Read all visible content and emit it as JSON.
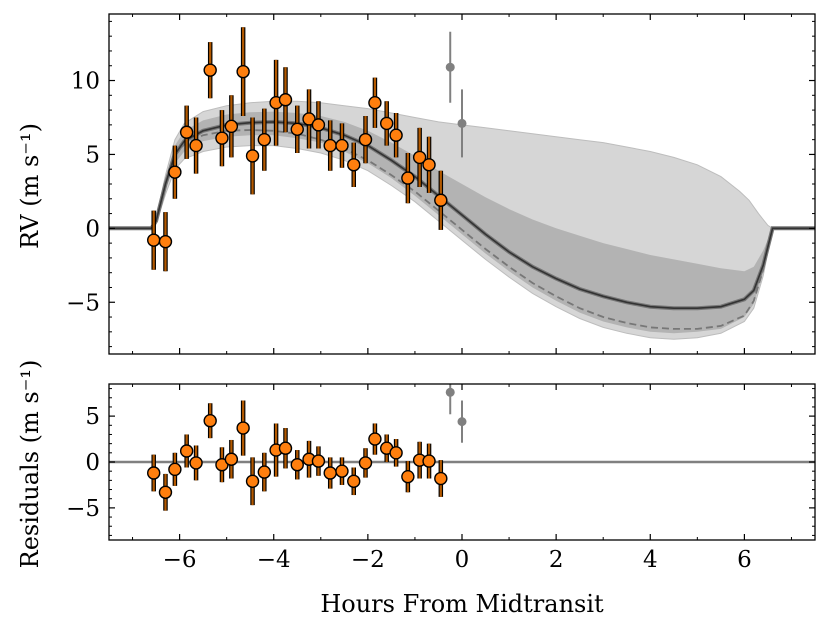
{
  "chart_data": {
    "type": "scatter",
    "xlabel": "Hours From Midtransit",
    "xlim": [
      -7.5,
      7.5
    ],
    "xticks": [
      -6,
      -4,
      -2,
      0,
      2,
      4,
      6
    ],
    "xtick_labels": [
      "−6",
      "−4",
      "−2",
      "0",
      "2",
      "4",
      "6"
    ],
    "colors": {
      "point_fill": "#ff7f0e",
      "point_edge": "#000000",
      "errorbar": "#b35900",
      "excluded": "#808080",
      "model_line": "#333333",
      "band_outer": "#d6d6d6",
      "band_inner": "#b3b3b3",
      "dashed": "#777777"
    },
    "top": {
      "ylabel": "RV (m s⁻¹)",
      "ylim": [
        -8.5,
        14.5
      ],
      "yticks": [
        -5,
        0,
        5,
        10
      ],
      "ytick_labels": [
        "−5",
        "0",
        "5",
        "10"
      ],
      "points": [
        {
          "x": -6.55,
          "y": -0.8,
          "err": 2.0
        },
        {
          "x": -6.3,
          "y": -0.9,
          "err": 2.0
        },
        {
          "x": -6.1,
          "y": 3.8,
          "err": 1.8
        },
        {
          "x": -5.85,
          "y": 6.5,
          "err": 1.8
        },
        {
          "x": -5.65,
          "y": 5.6,
          "err": 1.9
        },
        {
          "x": -5.35,
          "y": 10.7,
          "err": 1.9
        },
        {
          "x": -5.1,
          "y": 6.1,
          "err": 1.9
        },
        {
          "x": -4.9,
          "y": 6.9,
          "err": 2.1
        },
        {
          "x": -4.65,
          "y": 10.6,
          "err": 3.0
        },
        {
          "x": -4.45,
          "y": 4.9,
          "err": 2.6
        },
        {
          "x": -4.2,
          "y": 6.0,
          "err": 2.1
        },
        {
          "x": -3.95,
          "y": 8.5,
          "err": 2.9
        },
        {
          "x": -3.75,
          "y": 8.7,
          "err": 2.2
        },
        {
          "x": -3.5,
          "y": 6.7,
          "err": 1.6
        },
        {
          "x": -3.25,
          "y": 7.4,
          "err": 2.0
        },
        {
          "x": -3.05,
          "y": 7.0,
          "err": 1.6
        },
        {
          "x": -2.8,
          "y": 5.6,
          "err": 1.7
        },
        {
          "x": -2.55,
          "y": 5.6,
          "err": 1.5
        },
        {
          "x": -2.3,
          "y": 4.3,
          "err": 1.5
        },
        {
          "x": -2.05,
          "y": 6.0,
          "err": 1.6
        },
        {
          "x": -1.85,
          "y": 8.5,
          "err": 1.7
        },
        {
          "x": -1.6,
          "y": 7.1,
          "err": 1.5
        },
        {
          "x": -1.4,
          "y": 6.3,
          "err": 1.5
        },
        {
          "x": -1.15,
          "y": 3.4,
          "err": 1.7
        },
        {
          "x": -0.9,
          "y": 4.8,
          "err": 2.0
        },
        {
          "x": -0.7,
          "y": 4.3,
          "err": 1.9
        },
        {
          "x": -0.45,
          "y": 1.9,
          "err": 2.0
        }
      ],
      "excluded_points": [
        {
          "x": -0.25,
          "y": 10.9,
          "err": 2.4
        },
        {
          "x": 0.0,
          "y": 7.1,
          "err": 2.3
        }
      ],
      "model_curve": [
        [
          -7.5,
          0.0
        ],
        [
          -6.6,
          0.0
        ],
        [
          -6.5,
          0.5
        ],
        [
          -6.3,
          3.0
        ],
        [
          -6.1,
          5.0
        ],
        [
          -5.9,
          5.9
        ],
        [
          -5.5,
          6.6
        ],
        [
          -5.0,
          7.0
        ],
        [
          -4.5,
          7.15
        ],
        [
          -4.0,
          7.2
        ],
        [
          -3.5,
          7.1
        ],
        [
          -3.0,
          6.8
        ],
        [
          -2.5,
          6.3
        ],
        [
          -2.0,
          5.6
        ],
        [
          -1.5,
          4.6
        ],
        [
          -1.0,
          3.5
        ],
        [
          -0.5,
          2.2
        ],
        [
          0.0,
          0.9
        ],
        [
          0.5,
          -0.4
        ],
        [
          1.0,
          -1.6
        ],
        [
          1.5,
          -2.6
        ],
        [
          2.0,
          -3.4
        ],
        [
          2.5,
          -4.1
        ],
        [
          3.0,
          -4.6
        ],
        [
          3.5,
          -5.0
        ],
        [
          4.0,
          -5.3
        ],
        [
          4.5,
          -5.4
        ],
        [
          5.0,
          -5.4
        ],
        [
          5.5,
          -5.3
        ],
        [
          6.0,
          -4.8
        ],
        [
          6.2,
          -4.2
        ],
        [
          6.4,
          -2.5
        ],
        [
          6.6,
          0.0
        ],
        [
          7.5,
          0.0
        ]
      ],
      "dashed_curve": [
        [
          -6.6,
          0.0
        ],
        [
          -6.5,
          0.5
        ],
        [
          -6.3,
          3.0
        ],
        [
          -6.1,
          4.9
        ],
        [
          -5.9,
          5.7
        ],
        [
          -5.5,
          6.3
        ],
        [
          -5.0,
          6.6
        ],
        [
          -4.5,
          6.65
        ],
        [
          -4.0,
          6.6
        ],
        [
          -3.5,
          6.4
        ],
        [
          -3.0,
          6.0
        ],
        [
          -2.5,
          5.4
        ],
        [
          -2.0,
          4.6
        ],
        [
          -1.5,
          3.6
        ],
        [
          -1.0,
          2.5
        ],
        [
          -0.5,
          1.2
        ],
        [
          0.0,
          -0.1
        ],
        [
          0.5,
          -1.4
        ],
        [
          1.0,
          -2.6
        ],
        [
          1.5,
          -3.7
        ],
        [
          2.0,
          -4.6
        ],
        [
          2.5,
          -5.4
        ],
        [
          3.0,
          -6.0
        ],
        [
          3.5,
          -6.4
        ],
        [
          4.0,
          -6.7
        ],
        [
          4.5,
          -6.8
        ],
        [
          5.0,
          -6.8
        ],
        [
          5.5,
          -6.6
        ],
        [
          6.0,
          -5.9
        ],
        [
          6.2,
          -4.9
        ],
        [
          6.4,
          -2.8
        ],
        [
          6.6,
          0.0
        ]
      ],
      "band_outer_upper": [
        [
          -7.5,
          0.0
        ],
        [
          -6.6,
          0.0
        ],
        [
          -6.5,
          0.7
        ],
        [
          -6.3,
          3.6
        ],
        [
          -6.1,
          6.0
        ],
        [
          -5.9,
          7.1
        ],
        [
          -5.5,
          7.9
        ],
        [
          -5.0,
          8.3
        ],
        [
          -4.5,
          8.5
        ],
        [
          -4.0,
          8.6
        ],
        [
          -3.5,
          8.6
        ],
        [
          -3.0,
          8.5
        ],
        [
          -2.5,
          8.3
        ],
        [
          -2.0,
          8.1
        ],
        [
          -1.5,
          7.8
        ],
        [
          -1.0,
          7.5
        ],
        [
          -0.5,
          7.2
        ],
        [
          0.0,
          7.0
        ],
        [
          0.5,
          6.8
        ],
        [
          1.0,
          6.6
        ],
        [
          1.5,
          6.4
        ],
        [
          2.0,
          6.2
        ],
        [
          2.5,
          6.0
        ],
        [
          3.0,
          5.8
        ],
        [
          3.5,
          5.5
        ],
        [
          4.0,
          5.2
        ],
        [
          4.5,
          4.8
        ],
        [
          5.0,
          4.3
        ],
        [
          5.5,
          3.5
        ],
        [
          5.9,
          2.5
        ],
        [
          6.1,
          1.9
        ],
        [
          6.3,
          1.0
        ],
        [
          6.5,
          0.2
        ],
        [
          6.6,
          0.0
        ],
        [
          7.5,
          0.0
        ]
      ],
      "band_outer_lower": [
        [
          -7.5,
          0.0
        ],
        [
          -6.6,
          0.0
        ],
        [
          -6.5,
          0.3
        ],
        [
          -6.3,
          2.3
        ],
        [
          -6.1,
          4.0
        ],
        [
          -5.9,
          4.7
        ],
        [
          -5.5,
          5.2
        ],
        [
          -5.0,
          5.5
        ],
        [
          -4.5,
          5.6
        ],
        [
          -4.0,
          5.6
        ],
        [
          -3.5,
          5.4
        ],
        [
          -3.0,
          5.1
        ],
        [
          -2.5,
          4.6
        ],
        [
          -2.0,
          3.9
        ],
        [
          -1.5,
          2.9
        ],
        [
          -1.0,
          1.8
        ],
        [
          -0.5,
          0.5
        ],
        [
          0.0,
          -0.8
        ],
        [
          0.5,
          -2.1
        ],
        [
          1.0,
          -3.3
        ],
        [
          1.5,
          -4.4
        ],
        [
          2.0,
          -5.3
        ],
        [
          2.5,
          -6.1
        ],
        [
          3.0,
          -6.7
        ],
        [
          3.5,
          -7.1
        ],
        [
          4.0,
          -7.4
        ],
        [
          4.5,
          -7.5
        ],
        [
          5.0,
          -7.4
        ],
        [
          5.5,
          -7.1
        ],
        [
          6.0,
          -6.3
        ],
        [
          6.2,
          -5.4
        ],
        [
          6.4,
          -3.2
        ],
        [
          6.6,
          0.0
        ],
        [
          7.5,
          0.0
        ]
      ],
      "band_inner_upper": [
        [
          -6.6,
          0.0
        ],
        [
          -6.5,
          0.6
        ],
        [
          -6.3,
          3.4
        ],
        [
          -6.1,
          5.6
        ],
        [
          -5.9,
          6.6
        ],
        [
          -5.5,
          7.3
        ],
        [
          -5.0,
          7.7
        ],
        [
          -4.5,
          7.85
        ],
        [
          -4.0,
          7.9
        ],
        [
          -3.5,
          7.8
        ],
        [
          -3.0,
          7.6
        ],
        [
          -2.5,
          7.2
        ],
        [
          -2.0,
          6.6
        ],
        [
          -1.5,
          5.8
        ],
        [
          -1.0,
          4.9
        ],
        [
          -0.5,
          3.9
        ],
        [
          0.0,
          3.0
        ],
        [
          0.5,
          2.1
        ],
        [
          1.0,
          1.3
        ],
        [
          1.5,
          0.6
        ],
        [
          2.0,
          0.0
        ],
        [
          2.5,
          -0.5
        ],
        [
          3.0,
          -1.0
        ],
        [
          3.5,
          -1.4
        ],
        [
          4.0,
          -1.8
        ],
        [
          4.5,
          -2.1
        ],
        [
          5.0,
          -2.4
        ],
        [
          5.5,
          -2.7
        ],
        [
          6.0,
          -2.9
        ],
        [
          6.2,
          -2.6
        ],
        [
          6.4,
          -1.5
        ],
        [
          6.6,
          0.0
        ]
      ],
      "band_inner_lower": [
        [
          -6.6,
          0.0
        ],
        [
          -6.5,
          0.4
        ],
        [
          -6.3,
          2.6
        ],
        [
          -6.1,
          4.4
        ],
        [
          -5.9,
          5.2
        ],
        [
          -5.5,
          5.9
        ],
        [
          -5.0,
          6.2
        ],
        [
          -4.5,
          6.3
        ],
        [
          -4.0,
          6.3
        ],
        [
          -3.5,
          6.1
        ],
        [
          -3.0,
          5.8
        ],
        [
          -2.5,
          5.2
        ],
        [
          -2.0,
          4.4
        ],
        [
          -1.5,
          3.4
        ],
        [
          -1.0,
          2.2
        ],
        [
          -0.5,
          0.9
        ],
        [
          0.0,
          -0.4
        ],
        [
          0.5,
          -1.7
        ],
        [
          1.0,
          -2.9
        ],
        [
          1.5,
          -4.0
        ],
        [
          2.0,
          -4.9
        ],
        [
          2.5,
          -5.7
        ],
        [
          3.0,
          -6.3
        ],
        [
          3.5,
          -6.7
        ],
        [
          4.0,
          -7.0
        ],
        [
          4.5,
          -7.1
        ],
        [
          5.0,
          -7.0
        ],
        [
          5.5,
          -6.8
        ],
        [
          6.0,
          -6.0
        ],
        [
          6.2,
          -5.1
        ],
        [
          6.4,
          -3.0
        ],
        [
          6.6,
          0.0
        ]
      ]
    },
    "bottom": {
      "ylabel": "Residuals (m s⁻¹)",
      "ylim": [
        -8.5,
        8.5
      ],
      "yticks": [
        -5,
        0,
        5
      ],
      "ytick_labels": [
        "−5",
        "0",
        "5"
      ],
      "zero_line": 0,
      "points": [
        {
          "x": -6.55,
          "y": -1.2,
          "err": 2.0
        },
        {
          "x": -6.3,
          "y": -3.3,
          "err": 2.0
        },
        {
          "x": -6.1,
          "y": -0.8,
          "err": 1.8
        },
        {
          "x": -5.85,
          "y": 1.2,
          "err": 1.8
        },
        {
          "x": -5.65,
          "y": -0.1,
          "err": 1.9
        },
        {
          "x": -5.35,
          "y": 4.5,
          "err": 1.9
        },
        {
          "x": -5.1,
          "y": -0.3,
          "err": 1.9
        },
        {
          "x": -4.9,
          "y": 0.3,
          "err": 2.1
        },
        {
          "x": -4.65,
          "y": 3.7,
          "err": 3.0
        },
        {
          "x": -4.45,
          "y": -2.1,
          "err": 2.6
        },
        {
          "x": -4.2,
          "y": -1.1,
          "err": 2.1
        },
        {
          "x": -3.95,
          "y": 1.3,
          "err": 2.9
        },
        {
          "x": -3.75,
          "y": 1.5,
          "err": 2.2
        },
        {
          "x": -3.5,
          "y": -0.3,
          "err": 1.6
        },
        {
          "x": -3.25,
          "y": 0.3,
          "err": 2.0
        },
        {
          "x": -3.05,
          "y": 0.1,
          "err": 1.6
        },
        {
          "x": -2.8,
          "y": -1.2,
          "err": 1.7
        },
        {
          "x": -2.55,
          "y": -1.0,
          "err": 1.5
        },
        {
          "x": -2.3,
          "y": -2.1,
          "err": 1.5
        },
        {
          "x": -2.05,
          "y": -0.1,
          "err": 1.6
        },
        {
          "x": -1.85,
          "y": 2.5,
          "err": 1.7
        },
        {
          "x": -1.6,
          "y": 1.5,
          "err": 1.5
        },
        {
          "x": -1.4,
          "y": 1.0,
          "err": 1.5
        },
        {
          "x": -1.15,
          "y": -1.6,
          "err": 1.7
        },
        {
          "x": -0.9,
          "y": 0.2,
          "err": 2.0
        },
        {
          "x": -0.7,
          "y": 0.1,
          "err": 1.9
        },
        {
          "x": -0.45,
          "y": -1.8,
          "err": 2.0
        }
      ],
      "excluded_points": [
        {
          "x": -0.25,
          "y": 7.6,
          "err": 2.4
        },
        {
          "x": 0.0,
          "y": 4.4,
          "err": 2.3
        }
      ]
    }
  }
}
